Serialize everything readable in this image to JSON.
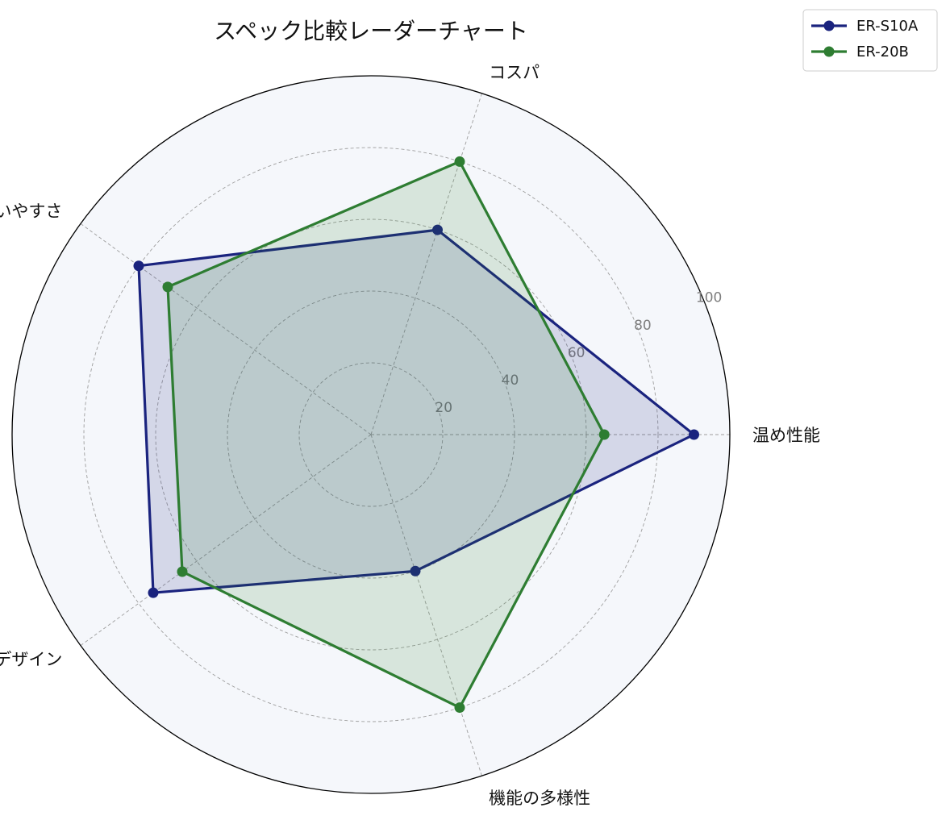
{
  "chart_data": {
    "type": "radar",
    "title": "スペック比較レーダーチャート",
    "axes": [
      "温め性能",
      "コスパ",
      "使いやすさ",
      "デザイン",
      "機能の多様性"
    ],
    "rlim": [
      0,
      100
    ],
    "radial_ticks": [
      20,
      40,
      60,
      80,
      100
    ],
    "grid": true,
    "legend_position": "top-right",
    "series": [
      {
        "name": "ER-S10A",
        "values": [
          90,
          60,
          80,
          75,
          40
        ],
        "color": "#1a237e"
      },
      {
        "name": "ER-20B",
        "values": [
          65,
          80,
          70,
          65,
          80
        ],
        "color": "#2e7d32"
      }
    ],
    "plot_background": "#f5f7fb"
  }
}
